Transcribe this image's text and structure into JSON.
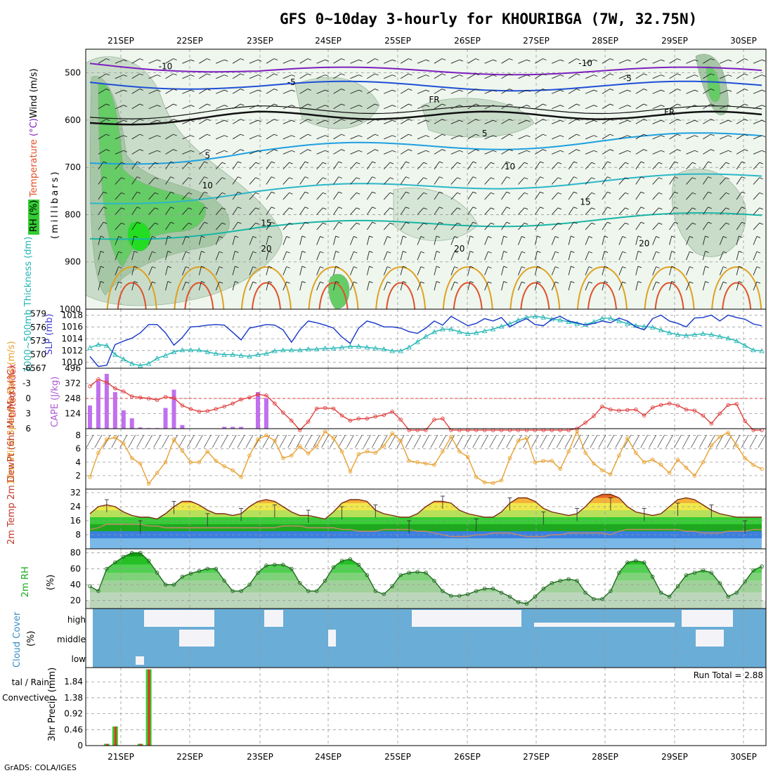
{
  "header": {
    "title": "GFS 0~10day 3-hourly for KHOURIBGA (7W, 32.75N)",
    "credit": "GrADS: COLA/IGES"
  },
  "colors": {
    "rh_green": "#33cc33",
    "temp_cold": "#7d1fbf",
    "temp_blue": "#1f4fd6",
    "temp_cyan": "#1ea0e0",
    "temp_teal": "#19b5a5",
    "temp_warm": "#e0a020",
    "temp_hot": "#e0502a",
    "slp": "#1535c8",
    "thickness": "#22b5b5",
    "cape": "#c070ee",
    "lifted_index": "#e04040",
    "wind_speed": "#e8a030",
    "cloud": "#6aadd6",
    "precip_total": "#33cc33",
    "precip_conv": "#e83020"
  },
  "chart_data": {
    "x_axis": {
      "labels": [
        "21SEP",
        "22SEP",
        "23SEP",
        "24SEP",
        "25SEP",
        "26SEP",
        "27SEP",
        "28SEP",
        "29SEP",
        "30SEP"
      ],
      "steps_per_day": 8,
      "total_steps": 81
    },
    "panels": [
      {
        "id": "upper_air",
        "type": "contour",
        "ylabel": "(millibars)",
        "legend": [
          "Temperature (°C)",
          "Wind (m/s)",
          "RH (%)"
        ],
        "yticks": [
          500,
          600,
          700,
          800,
          900,
          1000
        ],
        "ylim": [
          450,
          1000
        ],
        "contour_labels": [
          {
            "text": "-10",
            "t": 9,
            "p": 492
          },
          {
            "text": "-10",
            "t": 59,
            "p": 486
          },
          {
            "text": "-5",
            "t": 24,
            "p": 526
          },
          {
            "text": "-5",
            "t": 64,
            "p": 518
          },
          {
            "text": "FR",
            "t": 41,
            "p": 563
          },
          {
            "text": "FR",
            "t": 69,
            "p": 590
          },
          {
            "text": "5",
            "t": 14,
            "p": 681
          },
          {
            "text": "5",
            "t": 47,
            "p": 634
          },
          {
            "text": "10",
            "t": 14,
            "p": 744
          },
          {
            "text": "10",
            "t": 50,
            "p": 704
          },
          {
            "text": "15",
            "t": 21,
            "p": 824
          },
          {
            "text": "15",
            "t": 59,
            "p": 779
          },
          {
            "text": "20",
            "t": 21,
            "p": 878
          },
          {
            "text": "20",
            "t": 44,
            "p": 878
          },
          {
            "text": "20",
            "t": 66,
            "p": 867
          }
        ]
      },
      {
        "id": "slp_thickness",
        "type": "line",
        "y1label": "SLP (mb)",
        "y2label": "1000~500mb Thickness (dm)",
        "y1ticks": [
          "1010",
          "1012",
          "1014",
          "1016",
          "1018"
        ],
        "y2ticks": [
          "567",
          "570",
          "573",
          "576",
          "579"
        ],
        "y1lim": [
          1009,
          1019
        ],
        "y2lim": [
          567,
          580
        ],
        "series": [
          {
            "name": "SLP",
            "values": [
              1011.0,
              1009.3,
              1009.5,
              1013.0,
              1013.6,
              1014.1,
              1015.0,
              1016.4,
              1016.4,
              1015.0,
              1012.9,
              1014.2,
              1016.0,
              1016.1,
              1016.3,
              1016.4,
              1016.3,
              1015.1,
              1013.8,
              1015.8,
              1016.1,
              1016.4,
              1016.3,
              1015.5,
              1013.4,
              1015.5,
              1017.0,
              1016.7,
              1016.3,
              1015.8,
              1014.3,
              1013.2,
              1015.8,
              1017.0,
              1016.6,
              1016.0,
              1016.0,
              1015.8,
              1015.2,
              1014.9,
              1015.8,
              1017.0,
              1016.3,
              1017.8,
              1017.0,
              1016.2,
              1016.6,
              1017.4,
              1017.0,
              1017.6,
              1016.0,
              1016.8,
              1017.4,
              1016.4,
              1016.2,
              1017.3,
              1017.8,
              1017.0,
              1016.7,
              1016.3,
              1016.6,
              1017.0,
              1016.7,
              1017.5,
              1017.0,
              1016.0,
              1015.5,
              1017.4,
              1018.0,
              1017.0,
              1016.6,
              1016.0,
              1017.5,
              1017.6,
              1018.0,
              1017.0,
              1018.0,
              1017.6,
              1017.3,
              1016.5,
              1016.2
            ]
          },
          {
            "name": "Thickness",
            "values": [
              571.5,
              572.2,
              572.0,
              570.0,
              569.0,
              568.0,
              567.6,
              568.0,
              569.2,
              569.8,
              570.6,
              571.0,
              571.0,
              571.0,
              570.6,
              570.2,
              570.0,
              570.0,
              569.8,
              569.6,
              570.0,
              570.2,
              570.8,
              571.0,
              571.0,
              571.0,
              571.2,
              571.2,
              571.4,
              571.4,
              571.6,
              571.8,
              571.8,
              571.6,
              571.4,
              571.2,
              570.8,
              570.8,
              571.6,
              572.8,
              574.0,
              575.0,
              575.6,
              575.6,
              575.0,
              574.6,
              574.8,
              575.2,
              575.6,
              576.2,
              576.8,
              577.6,
              578.2,
              578.4,
              578.2,
              577.8,
              577.6,
              577.2,
              576.8,
              576.6,
              577.2,
              578.0,
              578.0,
              577.4,
              576.8,
              576.4,
              576.2,
              576.0,
              575.4,
              574.8,
              574.4,
              574.2,
              574.4,
              574.6,
              574.4,
              574.0,
              573.6,
              573.0,
              572.0,
              571.0,
              570.8
            ]
          }
        ]
      },
      {
        "id": "cape_li",
        "type": "bar+line",
        "y1label": "CAPE (J/kg)",
        "y2label": "Lifted Index",
        "y1ticks": [
          "124",
          "248",
          "372",
          "496"
        ],
        "y2ticks": [
          "6",
          "3",
          "0",
          "-3",
          "-6"
        ],
        "y1lim": [
          0,
          496
        ],
        "y2lim": [
          -6,
          6
        ],
        "series": [
          {
            "name": "CAPE",
            "values": [
              190,
              390,
              450,
              300,
              150,
              85,
              10,
              5,
              5,
              170,
              320,
              30,
              0,
              0,
              0,
              0,
              15,
              15,
              15,
              0,
              300,
              250,
              0,
              0,
              0,
              0,
              0,
              0,
              0,
              0,
              0,
              0,
              0,
              0,
              0,
              0,
              0,
              0,
              0,
              0,
              0,
              0,
              0,
              0,
              0,
              0,
              0,
              0,
              0,
              0,
              0,
              0,
              0,
              0,
              0,
              0,
              0,
              0,
              0,
              0,
              0,
              0,
              0,
              0,
              0,
              0,
              0,
              0,
              0,
              0,
              0,
              0,
              0,
              0,
              0,
              0,
              0,
              0,
              0,
              0,
              0
            ]
          },
          {
            "name": "LI",
            "values": [
              -2.4,
              -3.8,
              -3.2,
              -2.0,
              -1.4,
              -0.4,
              -0.2,
              0.0,
              0.3,
              -0.3,
              -0.1,
              1.4,
              2.1,
              2.6,
              2.5,
              2.1,
              1.6,
              1.0,
              0.2,
              -0.2,
              -0.8,
              -0.6,
              1.0,
              2.8,
              4.4,
              6.5,
              4.6,
              2.0,
              1.9,
              2.0,
              3.4,
              4.4,
              4.0,
              4.0,
              3.6,
              3.3,
              2.6,
              4.2,
              6.5,
              6.5,
              6.5,
              4.2,
              4.0,
              6.5,
              6.5,
              6.5,
              6.5,
              6.5,
              6.5,
              6.5,
              6.5,
              6.5,
              6.5,
              6.5,
              6.5,
              6.5,
              6.5,
              6.5,
              6.0,
              4.8,
              3.5,
              1.6,
              2.2,
              2.4,
              2.3,
              2.2,
              3.4,
              1.8,
              1.3,
              1.0,
              1.4,
              2.2,
              2.4,
              3.4,
              5.0,
              3.0,
              1.3,
              1.1,
              4.5,
              6.5,
              6.5
            ]
          }
        ]
      },
      {
        "id": "wind10m",
        "type": "line",
        "ylabel": "10m Wind Speed & Barbs (m/s)",
        "yticks": [
          "2",
          "4",
          "6",
          "8"
        ],
        "ylim": [
          0,
          9
        ],
        "series": [
          {
            "name": "Wind speed",
            "values": [
              1.8,
              5.4,
              7.4,
              7.7,
              6.8,
              4.6,
              3.8,
              0.8,
              2.4,
              4.0,
              7.4,
              5.7,
              4.0,
              4.0,
              5.6,
              4.2,
              3.4,
              2.8,
              1.8,
              5.0,
              7.4,
              8.0,
              7.2,
              4.6,
              5.0,
              6.4,
              5.3,
              6.4,
              8.6,
              7.6,
              5.6,
              2.6,
              5.2,
              5.6,
              5.4,
              6.4,
              8.3,
              7.2,
              4.2,
              4.0,
              3.8,
              3.6,
              5.6,
              7.8,
              5.6,
              4.8,
              1.8,
              1.0,
              0.9,
              1.3,
              4.6,
              7.2,
              7.6,
              4.0,
              4.2,
              4.2,
              3.0,
              5.6,
              8.6,
              5.4,
              3.8,
              2.8,
              2.2,
              5.0,
              7.6,
              5.4,
              4.0,
              4.4,
              3.6,
              2.4,
              4.4,
              3.2,
              2.0,
              4.0,
              6.5,
              7.8,
              8.4,
              6.5,
              4.6,
              3.6,
              3.0
            ]
          }
        ]
      },
      {
        "id": "temp2m",
        "type": "area+line",
        "ylabel": "2m Temp 2m DewPt (6hr Min/Max) (°C)",
        "yticks": [
          "8",
          "16",
          "24",
          "32"
        ],
        "ylim": [
          0,
          34
        ],
        "series": [
          {
            "name": "2m Temp",
            "values": [
              20,
              24,
              25,
              24,
              21,
              19,
              18,
              18,
              17,
              20,
              24,
              27,
              27,
              25,
              22,
              20,
              20,
              19,
              20,
              24,
              27,
              28,
              27,
              24,
              21,
              19,
              19,
              18,
              17,
              21,
              26,
              28,
              28,
              27,
              22,
              20,
              19,
              18,
              18,
              20,
              24,
              27,
              27,
              26,
              22,
              20,
              19,
              18,
              18,
              21,
              26,
              29,
              29,
              27,
              23,
              21,
              20,
              19,
              20,
              24,
              29,
              31,
              31,
              29,
              24,
              21,
              20,
              19,
              20,
              24,
              28,
              29,
              28,
              25,
              22,
              20,
              19,
              18,
              18,
              18,
              18
            ]
          },
          {
            "name": "2m DewPt",
            "values": [
              11,
              12,
              14,
              14,
              14,
              14,
              14,
              13,
              13,
              12,
              12,
              12,
              12,
              12,
              12,
              12,
              12,
              12,
              12,
              12,
              12,
              12,
              12,
              13,
              13,
              13,
              12,
              12,
              12,
              12,
              11,
              11,
              10,
              10,
              10,
              11,
              11,
              11,
              11,
              10,
              10,
              9,
              8,
              7,
              7,
              7,
              8,
              8,
              9,
              9,
              9,
              8,
              7,
              7,
              7,
              8,
              8,
              9,
              9,
              9,
              9,
              9,
              8,
              10,
              11,
              11,
              11,
              11,
              11,
              11,
              11,
              10,
              10,
              9,
              9,
              9,
              10,
              10,
              10,
              11,
              11
            ]
          }
        ]
      },
      {
        "id": "rh2m",
        "type": "area+line",
        "ylabel": "2m RH (%)",
        "yticks": [
          "20",
          "40",
          "60",
          "80"
        ],
        "ylim": [
          10,
          85
        ],
        "series": [
          {
            "name": "2m RH",
            "values": [
              38,
              32,
              60,
              68,
              75,
              80,
              80,
              70,
              55,
              40,
              40,
              50,
              54,
              57,
              60,
              60,
              45,
              32,
              32,
              40,
              55,
              64,
              65,
              65,
              60,
              42,
              32,
              32,
              45,
              62,
              70,
              72,
              65,
              52,
              32,
              28,
              38,
              52,
              55,
              56,
              55,
              45,
              32,
              26,
              26,
              28,
              32,
              35,
              35,
              30,
              25,
              18,
              16,
              25,
              35,
              42,
              45,
              47,
              45,
              30,
              22,
              22,
              32,
              55,
              68,
              70,
              68,
              50,
              30,
              25,
              38,
              52,
              55,
              58,
              55,
              42,
              25,
              30,
              44,
              58,
              63
            ]
          }
        ]
      },
      {
        "id": "cloud",
        "type": "blocks",
        "ylabel": "Cloud Cover (%)",
        "yticks": [
          "high",
          "middle",
          "low"
        ]
      },
      {
        "id": "precip",
        "type": "bar",
        "ylabel": "3hr Precip (mm)",
        "legend": [
          "Total / Rain",
          "Convective"
        ],
        "annotation": "Run Total = 2.88",
        "yticks": [
          "0",
          "0.46",
          "0.92",
          "1.38",
          "1.84"
        ],
        "ylim": [
          0,
          2.25
        ],
        "series": [
          {
            "name": "Total",
            "values": [
              0,
              0,
              0.05,
              0.55,
              0,
              0,
              0.05,
              2.2
            ]
          },
          {
            "name": "Convective",
            "values": [
              0,
              0,
              0.05,
              0.55,
              0,
              0,
              0.05,
              2.2
            ]
          }
        ]
      }
    ]
  }
}
